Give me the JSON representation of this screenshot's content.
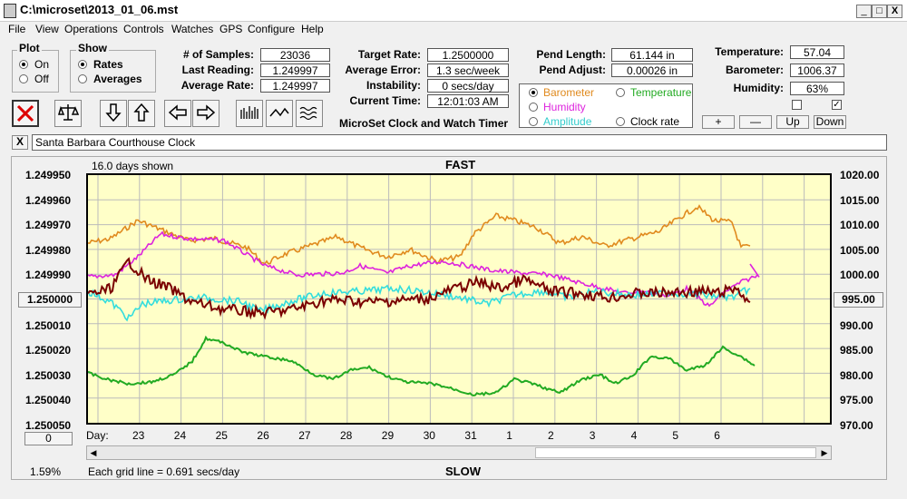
{
  "window": {
    "title": "C:\\microset\\2013_01_06.mst",
    "min": "_",
    "max": "□",
    "close": "X"
  },
  "menu": [
    "File",
    "View",
    "Operations",
    "Controls",
    "Watches",
    "GPS",
    "Configure",
    "Help"
  ],
  "plot_group": {
    "title": "Plot",
    "on": "On",
    "off": "Off"
  },
  "show_group": {
    "title": "Show",
    "rates": "Rates",
    "averages": "Averages"
  },
  "stats": {
    "samples_label": "# of Samples:",
    "samples": "23036",
    "last_reading_label": "Last Reading:",
    "last_reading": "1.249997",
    "average_rate_label": "Average Rate:",
    "average_rate": "1.249997",
    "target_rate_label": "Target Rate:",
    "target_rate": "1.2500000",
    "avg_error_label": "Average Error:",
    "avg_error": "1.3 sec/week",
    "instability_label": "Instability:",
    "instability": "0 secs/day",
    "current_time_label": "Current Time:",
    "current_time": "12:01:03 AM",
    "app_name": "MicroSet Clock and Watch Timer",
    "pend_length_label": "Pend Length:",
    "pend_length": "61.144 in",
    "pend_adjust_label": "Pend Adjust:",
    "pend_adjust": "0.00026 in",
    "temperature_label": "Temperature:",
    "temperature": "57.04",
    "barometer_label": "Barometer:",
    "barometer": "1006.37",
    "humidity_label": "Humidity:",
    "humidity": "63%"
  },
  "series_select": {
    "barometer": "Barometer",
    "temperature": "Temperature",
    "humidity": "Humidity",
    "amplitude": "Amplitude",
    "clock_rate": "Clock rate"
  },
  "scale_buttons": {
    "plus": "+",
    "minus": "—",
    "up": "Up",
    "down": "Down"
  },
  "clock_name": "Santa Barbara Courthouse Clock",
  "close_x": "X",
  "graph": {
    "days_shown": "16.0 days shown",
    "fast": "FAST",
    "slow": "SLOW",
    "grid_note": "Each grid line = 0.691 secs/day",
    "percent": "1.59%",
    "left_ticks": [
      "1.249950",
      "1.249960",
      "1.249970",
      "1.249980",
      "1.249990",
      "1.250000",
      "1.250010",
      "1.250020",
      "1.250030",
      "1.250040",
      "1.250050"
    ],
    "left_box": "1.250000",
    "right_ticks": [
      "1020.00",
      "1015.00",
      "1010.00",
      "1005.00",
      "1000.00",
      "995.00",
      "990.00",
      "985.00",
      "980.00",
      "975.00",
      "970.00"
    ],
    "right_box": "995.00",
    "day_label": "Day:",
    "days": [
      "23",
      "24",
      "25",
      "26",
      "27",
      "28",
      "29",
      "30",
      "31",
      "1",
      "2",
      "3",
      "4",
      "5",
      "6"
    ],
    "bottom_box": "0"
  },
  "colors": {
    "barometer": "#e08a1e",
    "humidity": "#dd22dd",
    "temperature": "#22aa22",
    "amplitude": "#33dddd",
    "clock_rate": "#7a0000",
    "graph_bg": "#ffffc8"
  }
}
